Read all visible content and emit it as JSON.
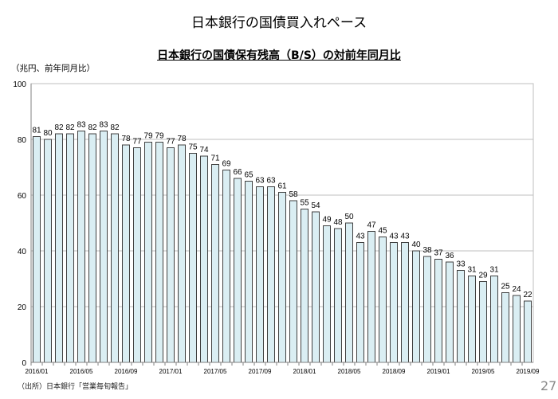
{
  "page": {
    "title": "日本銀行の国債買入れペース",
    "source": "（出所）日本銀行「営業毎旬報告」",
    "page_number": "27"
  },
  "chart_data": {
    "type": "bar",
    "title": "日本銀行の国債保有残高（B/S）の対前年同月比",
    "ylabel": "（兆円、前年同月比）",
    "ylim": [
      0,
      100
    ],
    "yticks": [
      0,
      20,
      40,
      60,
      80,
      100
    ],
    "grid": true,
    "categories": [
      "2016/01",
      "2016/02",
      "2016/03",
      "2016/04",
      "2016/05",
      "2016/06",
      "2016/07",
      "2016/08",
      "2016/09",
      "2016/10",
      "2016/11",
      "2016/12",
      "2017/01",
      "2017/02",
      "2017/03",
      "2017/04",
      "2017/05",
      "2017/06",
      "2017/07",
      "2017/08",
      "2017/09",
      "2017/10",
      "2017/11",
      "2017/12",
      "2018/01",
      "2018/02",
      "2018/03",
      "2018/04",
      "2018/05",
      "2018/06",
      "2018/07",
      "2018/08",
      "2018/09",
      "2018/10",
      "2018/11",
      "2018/12",
      "2019/01",
      "2019/02",
      "2019/03",
      "2019/04",
      "2019/05",
      "2019/06",
      "2019/07",
      "2019/08",
      "2019/09"
    ],
    "xtick_labels": [
      "2016/01",
      "2016/05",
      "2016/09",
      "2017/01",
      "2017/05",
      "2017/09",
      "2018/01",
      "2018/05",
      "2018/09",
      "2019/01",
      "2019/05",
      "2019/09"
    ],
    "values": [
      81,
      80,
      82,
      82,
      83,
      82,
      83,
      82,
      78,
      77,
      79,
      79,
      77,
      78,
      75,
      74,
      71,
      69,
      66,
      65,
      63,
      63,
      61,
      58,
      55,
      54,
      49,
      48,
      50,
      43,
      47,
      45,
      43,
      43,
      40,
      38,
      37,
      36,
      33,
      31,
      29,
      31,
      25,
      24,
      22
    ],
    "colors": {
      "bar_fill": "#daeef3",
      "bar_stroke": "#404040",
      "grid": "#bfbfbf"
    }
  }
}
